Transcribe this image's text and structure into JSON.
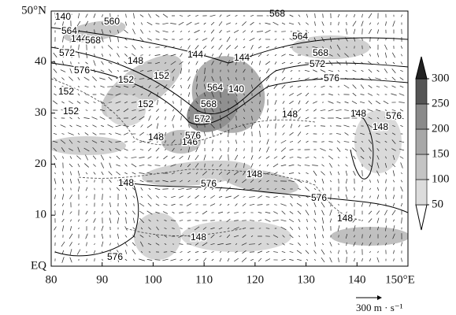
{
  "map": {
    "xlim": [
      80,
      150
    ],
    "ylim": [
      0,
      50
    ],
    "x_ticks": [
      80,
      90,
      100,
      110,
      120,
      130,
      140,
      {
        "value": 150,
        "label": "150°E"
      }
    ],
    "y_ticks": [
      {
        "value": 0,
        "label": "EQ"
      },
      10,
      20,
      30,
      40,
      {
        "value": 50,
        "label": "50°N"
      }
    ],
    "colorbar": {
      "ticks": [
        50,
        100,
        150,
        200,
        250,
        300
      ]
    },
    "contour_labels": [
      140,
      560,
      564,
      144,
      568,
      572,
      148,
      144,
      144,
      576,
      152,
      152,
      152,
      564,
      140,
      152,
      568,
      152,
      572,
      148,
      148,
      146,
      576,
      148,
      576,
      148,
      576,
      148,
      148,
      576,
      568,
      564,
      568,
      572,
      576,
      148,
      148,
      576
    ],
    "reference_vector": {
      "label": "300 m · s⁻¹"
    }
  }
}
